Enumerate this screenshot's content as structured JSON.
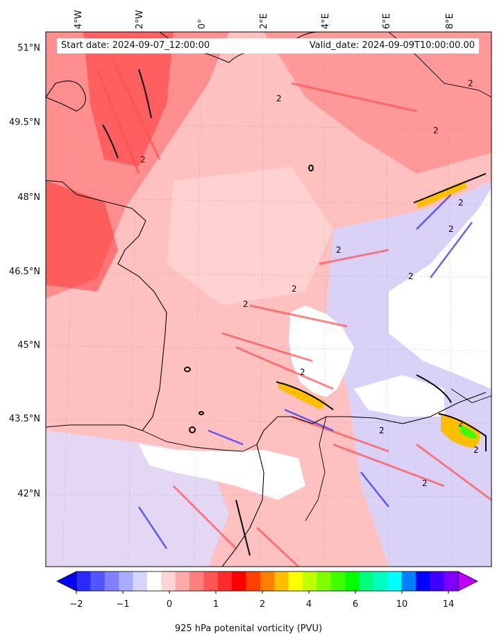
{
  "map": {
    "start_date_label": "Start date: 2024-09-07_12:00:00",
    "valid_date_label": "Valid_date: 2024-09-09T10:00:00.00",
    "lat_labels": [
      "51°N",
      "49.5°N",
      "48°N",
      "46.5°N",
      "45°N",
      "43.5°N",
      "42°N"
    ],
    "lon_labels": [
      "4°W",
      "2°W",
      "0°",
      "2°E",
      "4°E",
      "6°E",
      "8°E"
    ],
    "contour_label_value": "2",
    "colorbar": {
      "label": "925 hPa potenital vorticity (PVU)",
      "ticks": [
        "−2",
        "−1",
        "0",
        "1",
        "2",
        "4",
        "6",
        "10",
        "14"
      ],
      "colors": [
        "#0000ff",
        "#2a2aff",
        "#5555ff",
        "#7f7fff",
        "#aaaaff",
        "#d4d4ff",
        "#ffffff",
        "#ffd4d4",
        "#ffaaaa",
        "#ff7f7f",
        "#ff5555",
        "#ff2a2a",
        "#ff0000",
        "#ff4000",
        "#ff8000",
        "#ffbf00",
        "#ffff00",
        "#bfff00",
        "#80ff00",
        "#40ff00",
        "#00ff00",
        "#00ff80",
        "#00ffbf",
        "#00ffff",
        "#0080ff",
        "#0000ff",
        "#4000ff",
        "#8000ff",
        "#bf00ff"
      ]
    }
  }
}
